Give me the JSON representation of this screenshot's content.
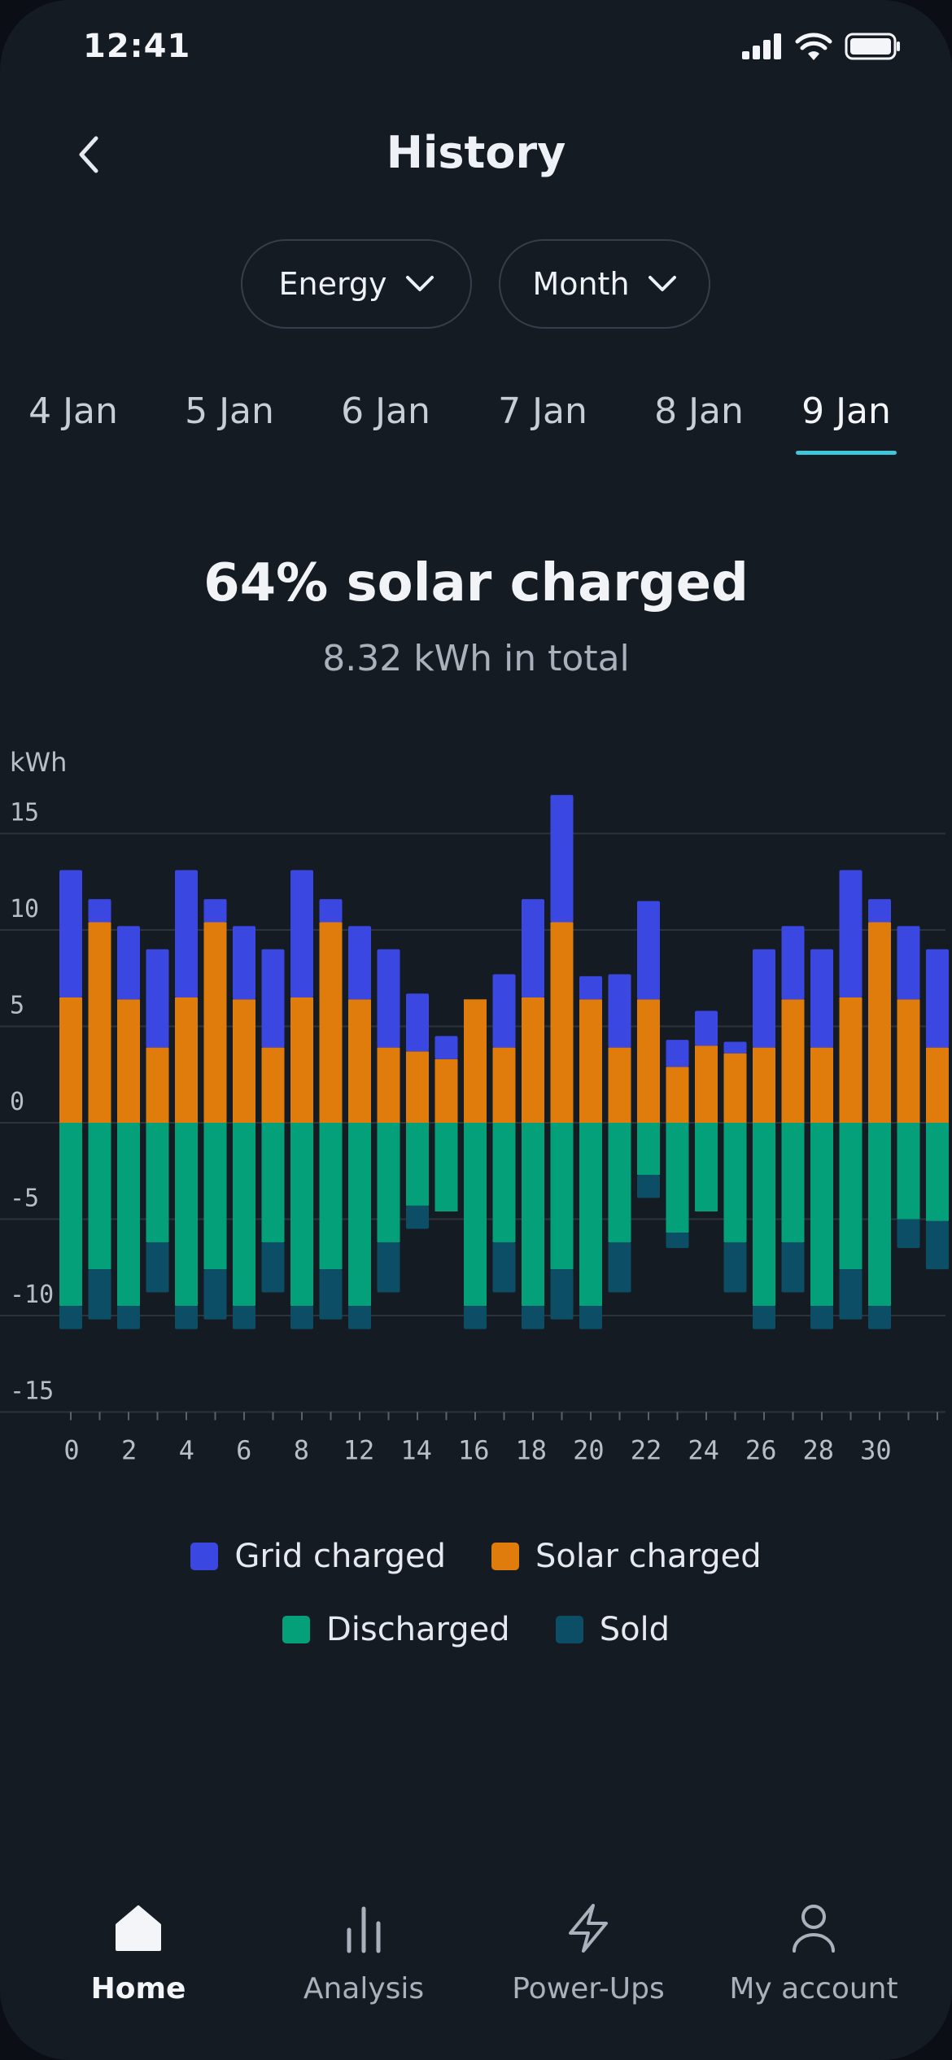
{
  "status_bar": {
    "time": "12:41"
  },
  "header": {
    "title": "History"
  },
  "filters": {
    "energy_label": "Energy",
    "period_label": "Month"
  },
  "date_tabs": [
    "4 Jan",
    "5 Jan",
    "6 Jan",
    "7 Jan",
    "8 Jan",
    "9 Jan"
  ],
  "summary": {
    "headline": "64% solar charged",
    "total": "8.32 kWh in total"
  },
  "colors": {
    "grid": "#3a47e0",
    "solar": "#e07c0b",
    "discharged": "#04a07a",
    "sold": "#0b4e66",
    "accent": "#3ec6d9"
  },
  "chart_data": {
    "type": "bar",
    "stacked": true,
    "ylabel": "kWh",
    "ylim": [
      -15,
      15
    ],
    "yticks": [
      15,
      10,
      5,
      0,
      -5,
      -10,
      -15
    ],
    "ytick_labels": [
      "15",
      "10",
      "5",
      "0",
      "-5",
      "-10",
      "-15"
    ],
    "x": [
      0,
      1,
      2,
      3,
      4,
      5,
      6,
      7,
      8,
      9,
      10,
      11,
      12,
      13,
      14,
      15,
      16,
      17,
      18,
      19,
      20,
      21,
      22,
      23,
      24,
      25,
      26,
      27,
      28,
      29,
      30
    ],
    "xtick_labels": [
      "0",
      "2",
      "4",
      "6",
      "8",
      "12",
      "14",
      "16",
      "18",
      "20",
      "22",
      "24",
      "26",
      "28",
      "30"
    ],
    "series": [
      {
        "name": "Grid charged",
        "values": [
          6.6,
          1.2,
          3.8,
          5.1,
          6.6,
          1.2,
          3.8,
          5.1,
          6.6,
          1.2,
          3.8,
          5.1,
          3.0,
          1.2,
          0,
          3.8,
          5.1,
          6.6,
          1.2,
          3.8,
          5.1,
          1.4,
          1.8,
          0.6,
          5.1,
          3.8,
          5.1,
          6.6,
          1.2,
          3.8,
          5.1
        ]
      },
      {
        "name": "Solar charged",
        "values": [
          6.5,
          10.4,
          6.4,
          3.9,
          6.5,
          10.4,
          6.4,
          3.9,
          6.5,
          10.4,
          6.4,
          3.9,
          3.7,
          3.3,
          6.4,
          3.9,
          6.5,
          10.4,
          6.4,
          3.9,
          6.4,
          2.9,
          4.0,
          3.6,
          3.9,
          6.4,
          3.9,
          6.5,
          10.4,
          6.4,
          3.9
        ]
      },
      {
        "name": "Discharged",
        "values": [
          -9.5,
          -7.6,
          -9.5,
          -6.2,
          -9.5,
          -7.6,
          -9.5,
          -6.2,
          -9.5,
          -7.6,
          -9.5,
          -6.2,
          -4.3,
          -4.6,
          -9.5,
          -6.2,
          -9.5,
          -7.6,
          -9.5,
          -6.2,
          -2.7,
          -5.7,
          -4.6,
          -6.2,
          -9.5,
          -6.2,
          -9.5,
          -7.6,
          -9.5,
          -5.0,
          -5.1
        ]
      },
      {
        "name": "Sold",
        "values": [
          -1.2,
          -2.6,
          -1.2,
          -2.6,
          -1.2,
          -2.6,
          -1.2,
          -2.6,
          -1.2,
          -2.6,
          -1.2,
          -2.6,
          -1.2,
          0,
          -1.2,
          -2.6,
          -1.2,
          -2.6,
          -1.2,
          -2.6,
          -1.2,
          -0.8,
          0,
          -2.6,
          -1.2,
          -2.6,
          -1.2,
          -2.6,
          -1.2,
          -1.5,
          -2.5
        ]
      }
    ]
  },
  "legend": {
    "grid": "Grid charged",
    "solar": "Solar charged",
    "discharged": "Discharged",
    "sold": "Sold"
  },
  "tabbar": {
    "home": "Home",
    "analysis": "Analysis",
    "powerups": "Power-Ups",
    "account": "My account"
  }
}
